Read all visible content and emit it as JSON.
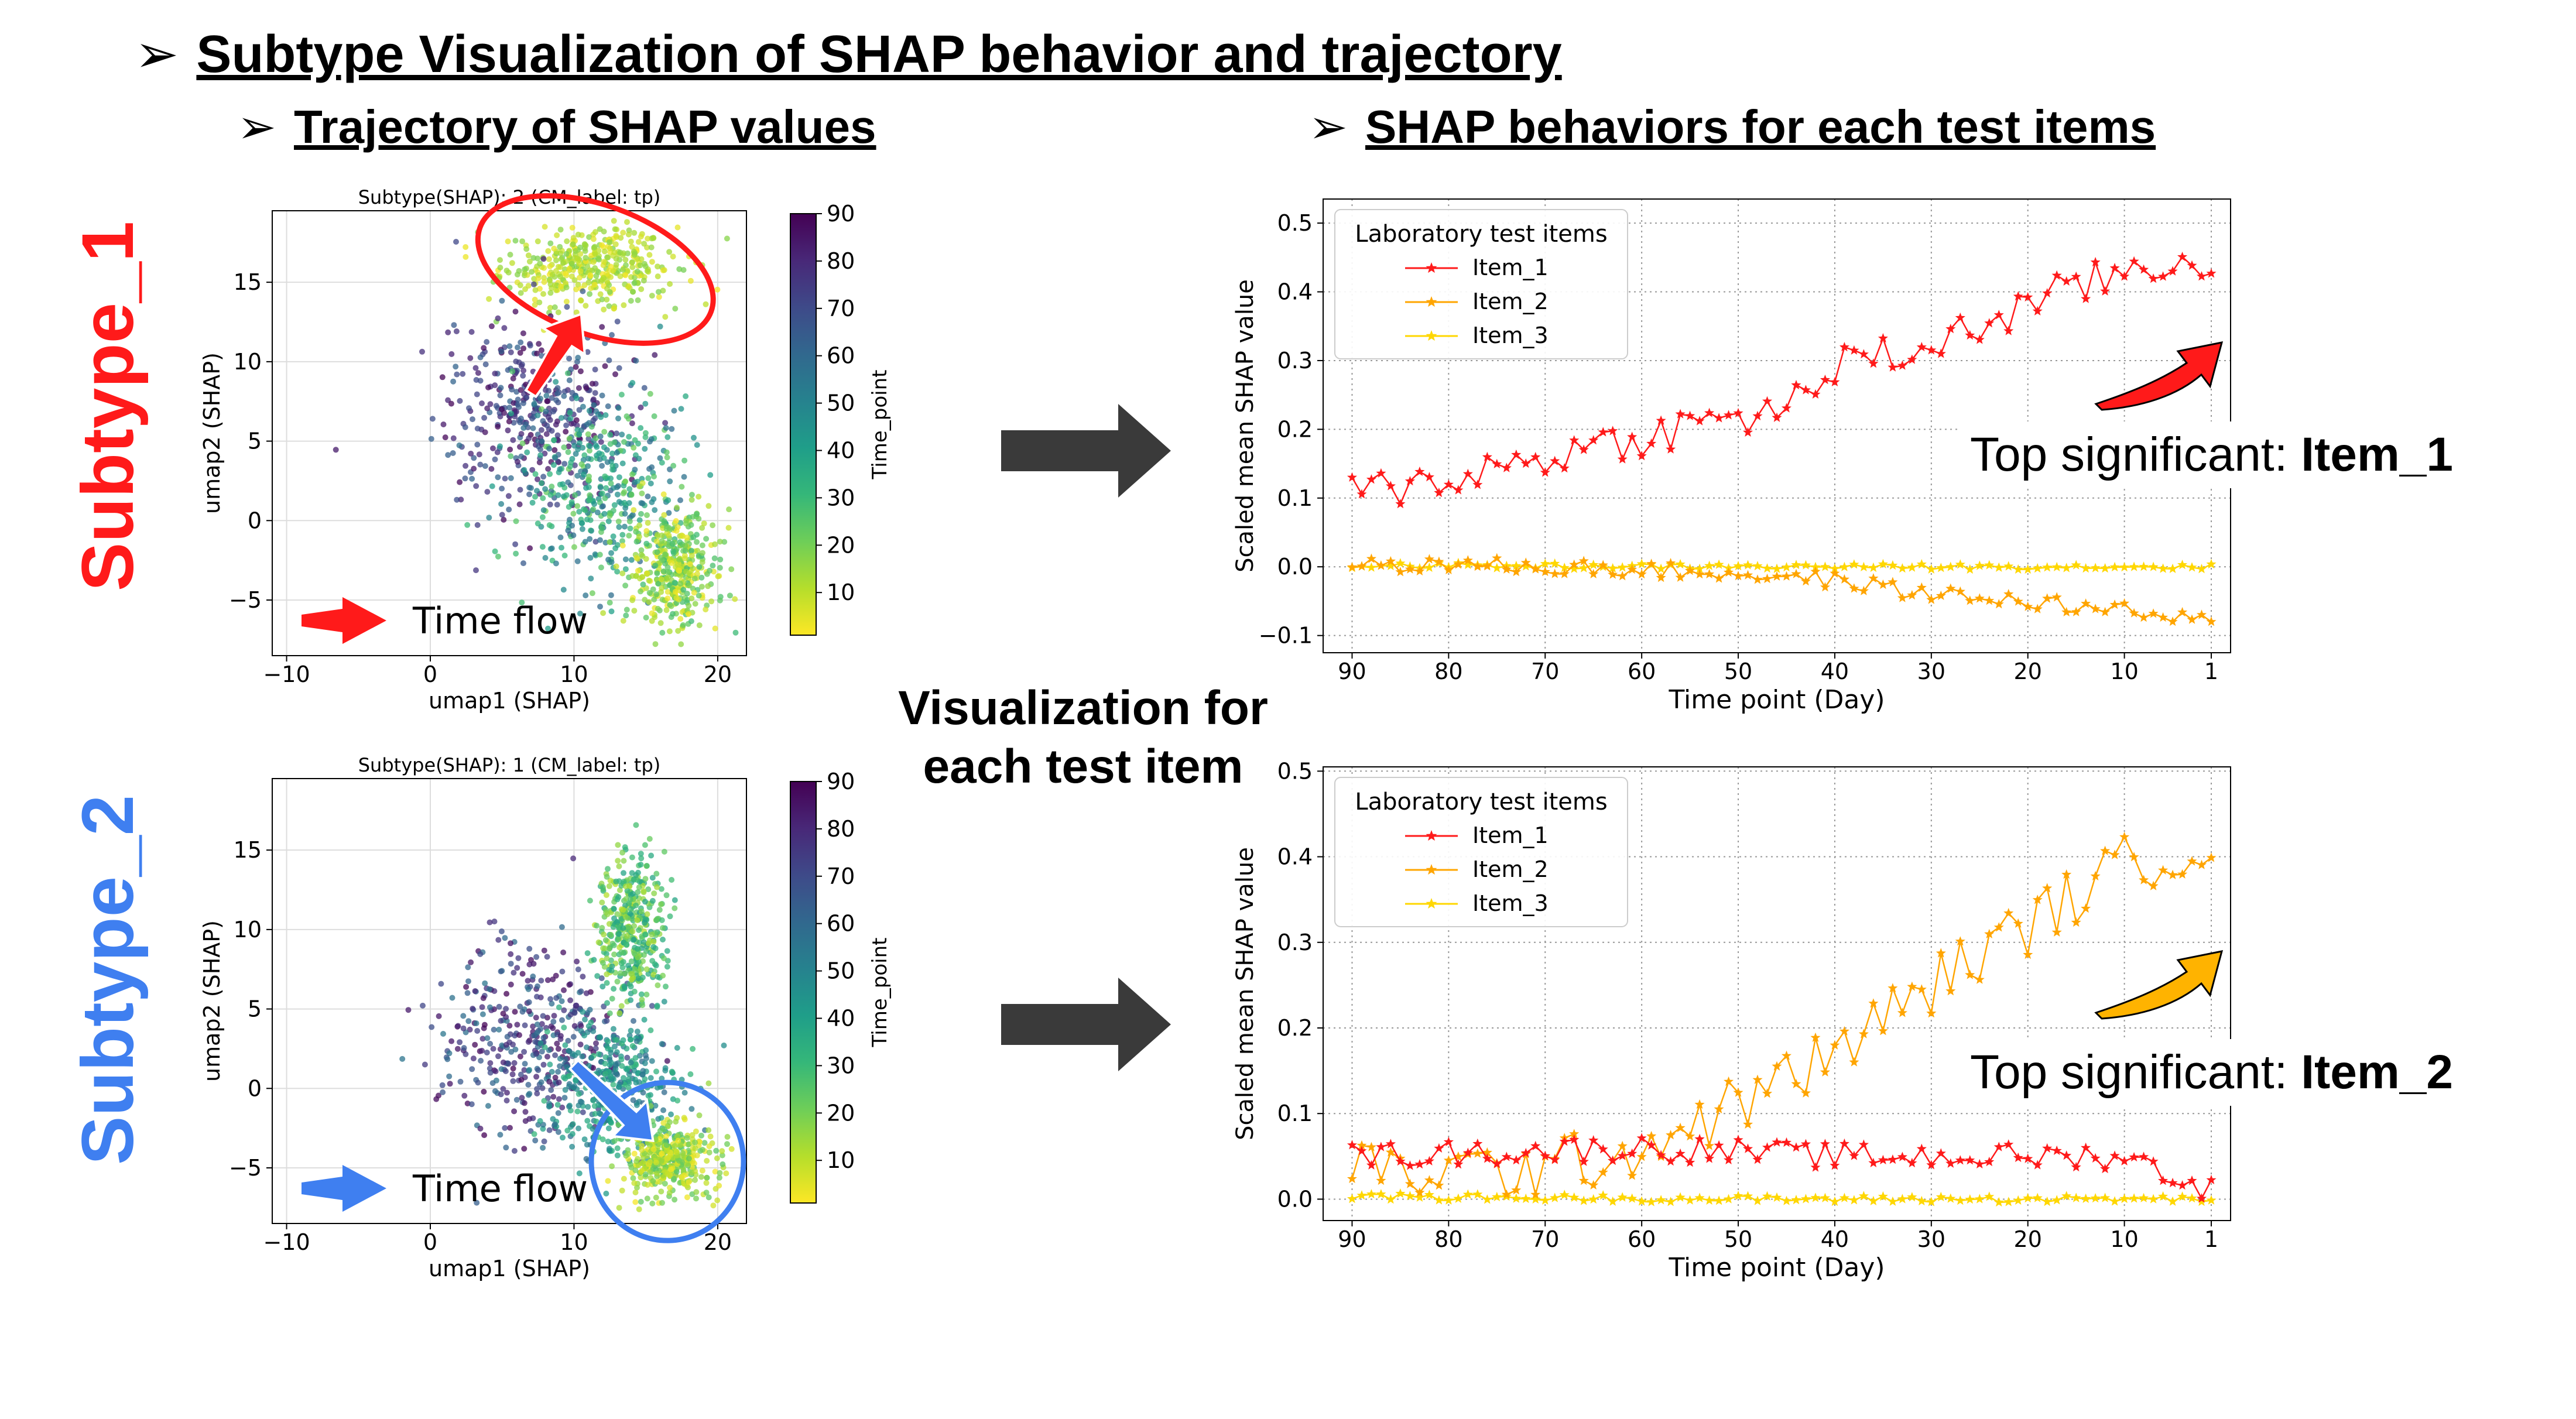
{
  "headings": {
    "main": "Subtype Visualization of SHAP behavior and trajectory",
    "left": "Trajectory of SHAP values",
    "right": "SHAP behaviors for each test items",
    "bullet": "➢"
  },
  "subtype_labels": [
    {
      "text": "Subtype_1",
      "color": "#ff1a1a"
    },
    {
      "text": "Subtype_2",
      "color": "#3f7ff0"
    }
  ],
  "center_label": "Visualization for each test item",
  "time_flow_label": "Time flow",
  "top_significant": [
    {
      "prefix": "Top significant: ",
      "item": "Item_1"
    },
    {
      "prefix": "Top significant: ",
      "item": "Item_2"
    }
  ],
  "colors": {
    "red": "#ff1a1a",
    "orange": "#ffa500",
    "gold": "#ffd700",
    "blue": "#3f7ff0",
    "dark_arrow": "#3a3a3a"
  },
  "chart_data": [
    {
      "type": "scatter",
      "title": "Subtype(SHAP): 2 (CM_label: tp)",
      "xlabel": "umap1 (SHAP)",
      "ylabel": "umap2 (SHAP)",
      "xlim": [
        -11,
        22
      ],
      "ylim": [
        -8.5,
        19.5
      ],
      "xticks": [
        -10,
        0,
        10,
        20
      ],
      "yticks": [
        -5,
        0,
        5,
        10,
        15
      ],
      "colorbar": {
        "label": "Time_point",
        "range": [
          1,
          90
        ],
        "ticks": [
          10,
          20,
          30,
          40,
          50,
          60,
          70,
          80,
          90
        ],
        "colormap": "viridis_r"
      },
      "grid": true,
      "point_count": 1600,
      "clusters": [
        {
          "cx": 11,
          "cy": 16,
          "sx": 4,
          "sy": 1.6,
          "time": [
            2,
            20
          ]
        },
        {
          "cx": 7,
          "cy": 7,
          "sx": 4.5,
          "sy": 4,
          "time": [
            60,
            90
          ]
        },
        {
          "cx": 12,
          "cy": 2,
          "sx": 4,
          "sy": 4,
          "time": [
            20,
            60
          ]
        },
        {
          "cx": 17,
          "cy": -3,
          "sx": 2,
          "sy": 2.5,
          "time": [
            2,
            30
          ]
        }
      ]
    },
    {
      "type": "scatter",
      "title": "Subtype(SHAP): 1 (CM_label: tp)",
      "xlabel": "umap1 (SHAP)",
      "ylabel": "umap2 (SHAP)",
      "xlim": [
        -11,
        22
      ],
      "ylim": [
        -8.5,
        19.5
      ],
      "xticks": [
        -10,
        0,
        10,
        20
      ],
      "yticks": [
        -5,
        0,
        5,
        10,
        15
      ],
      "colorbar": {
        "label": "Time_point",
        "range": [
          1,
          90
        ],
        "ticks": [
          10,
          20,
          30,
          40,
          50,
          60,
          70,
          80,
          90
        ],
        "colormap": "viridis_r"
      },
      "grid": true,
      "point_count": 1600,
      "clusters": [
        {
          "cx": 7,
          "cy": 3,
          "sx": 4.5,
          "sy": 4,
          "time": [
            55,
            90
          ]
        },
        {
          "cx": 13,
          "cy": 0,
          "sx": 3,
          "sy": 3,
          "time": [
            30,
            60
          ]
        },
        {
          "cx": 16.5,
          "cy": -4.5,
          "sx": 2,
          "sy": 1.5,
          "time": [
            2,
            25
          ]
        },
        {
          "cx": 14,
          "cy": 10,
          "sx": 1.5,
          "sy": 3,
          "time": [
            10,
            40
          ]
        }
      ]
    },
    {
      "type": "line",
      "xlabel": "Time point (Day)",
      "ylabel": "Scaled mean SHAP value",
      "xlim": [
        93,
        -1
      ],
      "ylim": [
        -0.125,
        0.535
      ],
      "xticks": [
        90,
        80,
        70,
        60,
        50,
        40,
        30,
        20,
        10,
        1
      ],
      "yticks": [
        -0.1,
        0.0,
        0.1,
        0.2,
        0.3,
        0.4,
        0.5
      ],
      "grid": true,
      "legend": {
        "title": "Laboratory test items",
        "position": "top-left"
      },
      "series": [
        {
          "name": "Item_1",
          "color": "#ff1a1a",
          "trend": [
            [
              90,
              0.105
            ],
            [
              80,
              0.13
            ],
            [
              60,
              0.19
            ],
            [
              45,
              0.23
            ],
            [
              40,
              0.29
            ],
            [
              30,
              0.32
            ],
            [
              20,
              0.38
            ],
            [
              10,
              0.43
            ],
            [
              1,
              0.45
            ]
          ],
          "noise": 0.03
        },
        {
          "name": "Item_2",
          "color": "#ffa500",
          "trend": [
            [
              90,
              0.005
            ],
            [
              70,
              0.0
            ],
            [
              50,
              -0.01
            ],
            [
              40,
              -0.02
            ],
            [
              30,
              -0.04
            ],
            [
              20,
              -0.05
            ],
            [
              10,
              -0.065
            ],
            [
              1,
              -0.08
            ]
          ],
          "noise": 0.012
        },
        {
          "name": "Item_3",
          "color": "#ffd700",
          "trend": [
            [
              90,
              0.002
            ],
            [
              50,
              0.0
            ],
            [
              1,
              0.0
            ]
          ],
          "noise": 0.004
        }
      ]
    },
    {
      "type": "line",
      "xlabel": "Time point (Day)",
      "ylabel": "Scaled mean SHAP value",
      "xlim": [
        93,
        -1
      ],
      "ylim": [
        -0.025,
        0.505
      ],
      "xticks": [
        90,
        80,
        70,
        60,
        50,
        40,
        30,
        20,
        10,
        1
      ],
      "yticks": [
        0.0,
        0.1,
        0.2,
        0.3,
        0.4,
        0.5
      ],
      "grid": true,
      "legend": {
        "title": "Laboratory test items",
        "position": "top-left"
      },
      "series": [
        {
          "name": "Item_1",
          "color": "#ff1a1a",
          "trend": [
            [
              90,
              0.05
            ],
            [
              60,
              0.06
            ],
            [
              40,
              0.05
            ],
            [
              20,
              0.05
            ],
            [
              10,
              0.05
            ],
            [
              1,
              0.01
            ]
          ],
          "noise": 0.015
        },
        {
          "name": "Item_2",
          "color": "#ffa500",
          "trend": [
            [
              90,
              0.03
            ],
            [
              70,
              0.035
            ],
            [
              60,
              0.06
            ],
            [
              50,
              0.11
            ],
            [
              40,
              0.17
            ],
            [
              30,
              0.25
            ],
            [
              20,
              0.32
            ],
            [
              10,
              0.39
            ],
            [
              1,
              0.42
            ]
          ],
          "noise": 0.035
        },
        {
          "name": "Item_3",
          "color": "#ffd700",
          "trend": [
            [
              90,
              0.003
            ],
            [
              50,
              0.0
            ],
            [
              1,
              0.0
            ]
          ],
          "noise": 0.004
        }
      ]
    }
  ]
}
